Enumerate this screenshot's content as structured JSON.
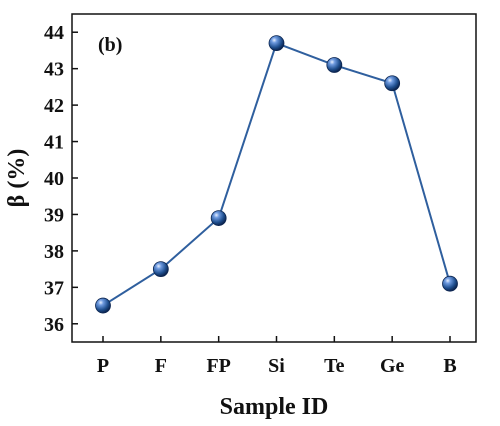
{
  "chart_data": {
    "type": "line",
    "panel_label": "(b)",
    "xlabel": "Sample ID",
    "ylabel": "β (%)",
    "categories": [
      "P",
      "F",
      "FP",
      "Si",
      "Te",
      "Ge",
      "B"
    ],
    "values": [
      36.5,
      37.5,
      38.9,
      43.7,
      43.1,
      42.6,
      37.1
    ],
    "ylim": [
      35.5,
      44.5
    ],
    "yticks": [
      "36",
      "37",
      "38",
      "39",
      "40",
      "41",
      "42",
      "43",
      "44"
    ],
    "grid": false,
    "line_color": "#2f5f9e",
    "marker_color": "#1f4f8f"
  }
}
